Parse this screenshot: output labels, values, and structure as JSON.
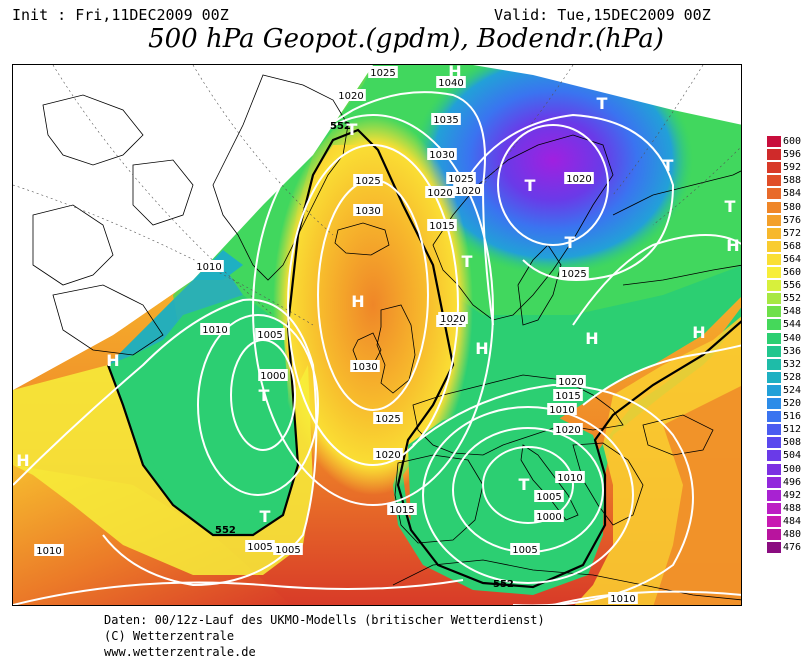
{
  "header": {
    "init": "Init : Fri,11DEC2009 00Z",
    "valid": "Valid: Tue,15DEC2009 00Z",
    "title": "500 hPa Geopot.(gpdm), Bodendr.(hPa)"
  },
  "legend": {
    "levels": [
      "600",
      "596",
      "592",
      "588",
      "584",
      "580",
      "576",
      "572",
      "568",
      "564",
      "560",
      "556",
      "552",
      "548",
      "544",
      "540",
      "536",
      "532",
      "528",
      "524",
      "520",
      "516",
      "512",
      "508",
      "504",
      "500",
      "496",
      "492",
      "488",
      "484",
      "480",
      "476"
    ],
    "colors": [
      "#c80e3c",
      "#cf2a2a",
      "#d83a28",
      "#e04e28",
      "#e86a2a",
      "#ef8628",
      "#f3a02a",
      "#f7b82c",
      "#f9cc30",
      "#fadf34",
      "#f7ee3a",
      "#d7f03c",
      "#a7e842",
      "#6fe04a",
      "#45d85a",
      "#2ccf72",
      "#22c68e",
      "#1ebca8",
      "#1eb0c2",
      "#22a0d8",
      "#2c8ce8",
      "#3a74f0",
      "#4a5cf0",
      "#5a48ee",
      "#6a3ae8",
      "#7c30e2",
      "#9228dc",
      "#a822d2",
      "#bc1ec4",
      "#c81ab2",
      "#b8149e",
      "#8a0c80"
    ]
  },
  "map": {
    "pressure_centers": [
      {
        "label": "H"
      },
      {
        "label": "H"
      },
      {
        "label": "H"
      },
      {
        "label": "H"
      },
      {
        "label": "H"
      },
      {
        "label": "H"
      },
      {
        "label": "H"
      },
      {
        "label": "T"
      },
      {
        "label": "T"
      },
      {
        "label": "T"
      },
      {
        "label": "T"
      },
      {
        "label": "T"
      },
      {
        "label": "T"
      },
      {
        "label": "T"
      },
      {
        "label": "T"
      },
      {
        "label": "T"
      },
      {
        "label": "T"
      },
      {
        "label": "H"
      }
    ],
    "isobar_labels": [
      "1025",
      "1040",
      "1020",
      "1035",
      "1030",
      "1025",
      "1020",
      "1015",
      "1010",
      "1005",
      "1000",
      "1030",
      "1025",
      "1020",
      "1020",
      "1015",
      "1010",
      "1005",
      "1000",
      "1010",
      "1005",
      "1020",
      "1015",
      "1010",
      "1005",
      "1010",
      "1010",
      "1025",
      "1020",
      "1020",
      "1025",
      "1030",
      "1020",
      "1010",
      "1005",
      "1020"
    ],
    "contour_552": "552"
  },
  "footer": {
    "line1": "Daten: 00/12z-Lauf des UKMO-Modells (britischer Wetterdienst)",
    "line2": "(C) Wetterzentrale",
    "line3": "www.wetterzentrale.de"
  }
}
